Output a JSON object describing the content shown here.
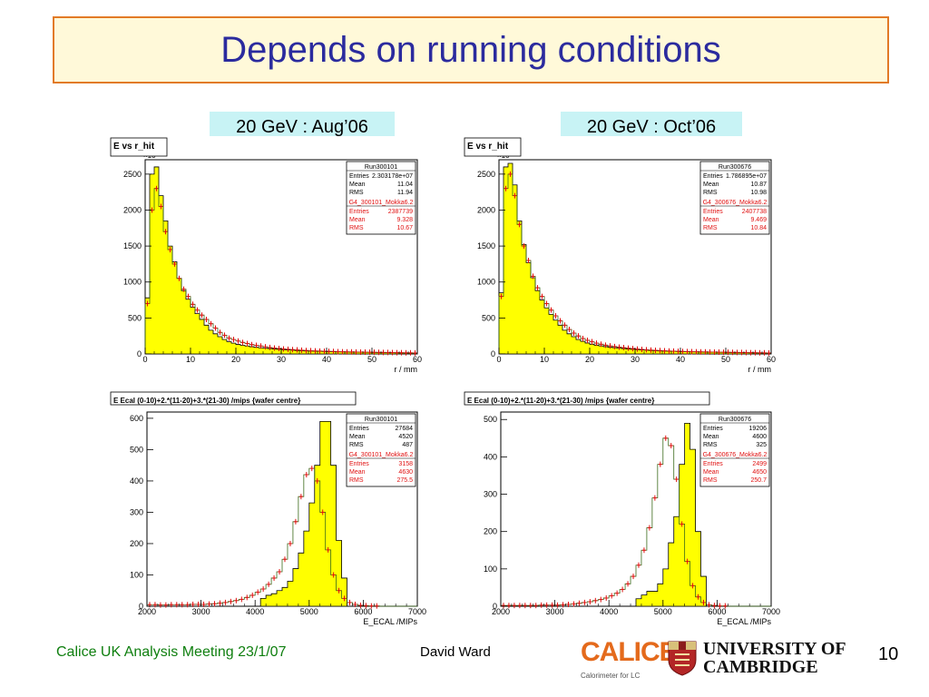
{
  "slide": {
    "title": "Depends on running conditions",
    "labels": [
      "20 GeV : Aug’06",
      "20 GeV : Oct’06"
    ],
    "footer_left": "Calice UK Analysis Meeting 23/1/07",
    "footer_center": "David Ward",
    "page_number": "10",
    "logo_calice": "CALICE",
    "logo_calice_sub": "Calorimeter for LC",
    "logo_cambridge": [
      "UNIVERSITY OF",
      "CAMBRIDGE"
    ]
  },
  "chart_data": [
    {
      "type": "bar",
      "title": "E vs r_hit",
      "xlabel": "r / mm",
      "ylabel_exp": "×10",
      "xlim": [
        0,
        60
      ],
      "ylim": [
        0,
        2700
      ],
      "xticks": [
        0,
        10,
        20,
        30,
        40,
        50,
        60
      ],
      "yticks": [
        0,
        500,
        1000,
        1500,
        2000,
        2500
      ],
      "bin_width": 1,
      "series": [
        {
          "role": "data",
          "values": [
            700,
            2000,
            2300,
            2050,
            1700,
            1450,
            1250,
            1050,
            900,
            800,
            690,
            610,
            540,
            480,
            420,
            360,
            300,
            260,
            220,
            200,
            180,
            160,
            145,
            130,
            120,
            110,
            100,
            90,
            82,
            75,
            70,
            65,
            60,
            56,
            52,
            48,
            45,
            42,
            40,
            38,
            36,
            34,
            32,
            30,
            29,
            28,
            27,
            26,
            25,
            24,
            23,
            22,
            21,
            20,
            19,
            18,
            17,
            16,
            15,
            14
          ]
        },
        {
          "role": "mc",
          "values": [
            780,
            2500,
            2600,
            2200,
            1850,
            1500,
            1280,
            1050,
            880,
            760,
            650,
            560,
            480,
            400,
            330,
            280,
            240,
            200,
            170,
            150,
            132,
            120,
            110,
            100,
            92,
            85,
            80,
            75,
            70,
            65,
            60,
            56,
            52,
            48,
            45,
            42,
            40,
            38,
            36,
            34,
            32,
            30,
            29,
            28,
            27,
            26,
            25,
            24,
            23,
            22,
            21,
            20,
            19,
            18,
            17,
            16,
            15,
            14,
            13,
            12
          ]
        }
      ],
      "stats": [
        {
          "header": "Run300101",
          "rows": [
            [
              "Entries",
              "2.303178e+07"
            ],
            [
              "Mean",
              "11.04"
            ],
            [
              "RMS",
              "11.94"
            ]
          ]
        },
        {
          "header": "G4_300101_Mokka6.2",
          "rows": [
            [
              "Entries",
              "2387739"
            ],
            [
              "Mean",
              "9.328"
            ],
            [
              "RMS",
              "10.67"
            ]
          ]
        }
      ]
    },
    {
      "type": "bar",
      "title": "E vs r_hit",
      "xlabel": "r / mm",
      "ylabel_exp": "×10",
      "xlim": [
        0,
        60
      ],
      "ylim": [
        0,
        2700
      ],
      "xticks": [
        0,
        10,
        20,
        30,
        40,
        50,
        60
      ],
      "yticks": [
        0,
        500,
        1000,
        1500,
        2000,
        2500
      ],
      "bin_width": 1,
      "series": [
        {
          "role": "data",
          "values": [
            800,
            2300,
            2500,
            2200,
            1800,
            1500,
            1300,
            1080,
            920,
            800,
            700,
            610,
            530,
            460,
            400,
            340,
            290,
            250,
            215,
            190,
            170,
            150,
            135,
            122,
            112,
            103,
            95,
            88,
            80,
            74,
            68,
            63,
            58,
            54,
            50,
            47,
            44,
            41,
            39,
            37,
            35,
            33,
            31,
            30,
            29,
            28,
            27,
            26,
            25,
            24,
            23,
            22,
            21,
            20,
            19,
            18,
            17,
            16,
            15,
            14
          ]
        },
        {
          "role": "mc",
          "values": [
            850,
            2600,
            2650,
            2350,
            1850,
            1520,
            1270,
            1060,
            880,
            750,
            640,
            550,
            470,
            400,
            330,
            280,
            240,
            200,
            175,
            152,
            135,
            122,
            112,
            102,
            94,
            87,
            80,
            75,
            70,
            65,
            60,
            56,
            52,
            48,
            45,
            42,
            40,
            38,
            36,
            34,
            32,
            30,
            29,
            28,
            27,
            26,
            25,
            24,
            23,
            22,
            21,
            20,
            19,
            18,
            17,
            16,
            15,
            14,
            13,
            12
          ]
        }
      ],
      "stats": [
        {
          "header": "Run300676",
          "rows": [
            [
              "Entries",
              "1.786895e+07"
            ],
            [
              "Mean",
              "10.87"
            ],
            [
              "RMS",
              "10.98"
            ]
          ]
        },
        {
          "header": "G4_300676_Mokka6.2",
          "rows": [
            [
              "Entries",
              "2407738"
            ],
            [
              "Mean",
              "9.469"
            ],
            [
              "RMS",
              "10.84"
            ]
          ]
        }
      ]
    },
    {
      "type": "bar",
      "title": "E Ecal (0-10)+2.*(11-20)+3.*(21-30) /mips {wafer centre}",
      "xlabel": "E_ECAL /MIPs",
      "xlim": [
        2000,
        7000
      ],
      "ylim": [
        0,
        620
      ],
      "xticks": [
        2000,
        3000,
        4000,
        5000,
        6000,
        7000
      ],
      "yticks": [
        0,
        100,
        200,
        300,
        400,
        500,
        600
      ],
      "bin_width": 100,
      "x_start": 2000,
      "series": [
        {
          "role": "data",
          "values": [
            5,
            5,
            4,
            4,
            5,
            5,
            5,
            5,
            6,
            6,
            6,
            7,
            8,
            10,
            12,
            15,
            18,
            22,
            28,
            35,
            45,
            55,
            70,
            90,
            110,
            150,
            200,
            270,
            350,
            420,
            440,
            400,
            300,
            180,
            100,
            50,
            25,
            12,
            6,
            3,
            2,
            1,
            1,
            0,
            0,
            0,
            0,
            0,
            0,
            0
          ]
        },
        {
          "role": "mc",
          "values": [
            0,
            0,
            0,
            0,
            0,
            0,
            0,
            0,
            0,
            0,
            0,
            0,
            0,
            0,
            0,
            0,
            0,
            0,
            0,
            0,
            0,
            25,
            35,
            40,
            50,
            60,
            80,
            120,
            170,
            240,
            330,
            450,
            590,
            590,
            450,
            210,
            90,
            0,
            0,
            0,
            0,
            0,
            0,
            0,
            0,
            0,
            0,
            0,
            0,
            0
          ]
        }
      ],
      "stats": [
        {
          "header": "Run300101",
          "rows": [
            [
              "Entries",
              "27684"
            ],
            [
              "Mean",
              "4520"
            ],
            [
              "RMS",
              "487"
            ]
          ]
        },
        {
          "header": "G4_300101_Mokka6.2",
          "rows": [
            [
              "Entries",
              "3158"
            ],
            [
              "Mean",
              "4630"
            ],
            [
              "RMS",
              "275.5"
            ]
          ]
        }
      ]
    },
    {
      "type": "bar",
      "title": "E Ecal (0-10)+2.*(11-20)+3.*(21-30) /mips {wafer centre}",
      "xlabel": "E_ECAL /MIPs",
      "xlim": [
        2000,
        7000
      ],
      "ylim": [
        0,
        520
      ],
      "xticks": [
        2000,
        3000,
        4000,
        5000,
        6000,
        7000
      ],
      "yticks": [
        0,
        100,
        200,
        300,
        400,
        500
      ],
      "bin_width": 100,
      "x_start": 2000,
      "series": [
        {
          "role": "data",
          "values": [
            2,
            2,
            2,
            2,
            2,
            2,
            2,
            3,
            3,
            3,
            3,
            4,
            5,
            6,
            8,
            10,
            12,
            15,
            18,
            22,
            28,
            35,
            45,
            60,
            80,
            110,
            150,
            210,
            290,
            380,
            450,
            430,
            340,
            220,
            120,
            55,
            25,
            10,
            4,
            2,
            1,
            1,
            0,
            0,
            0,
            0,
            0,
            0,
            0,
            0
          ]
        },
        {
          "role": "mc",
          "values": [
            0,
            0,
            0,
            0,
            0,
            0,
            0,
            0,
            0,
            0,
            0,
            0,
            0,
            0,
            0,
            0,
            0,
            0,
            0,
            0,
            0,
            0,
            0,
            0,
            0,
            20,
            30,
            40,
            40,
            60,
            100,
            170,
            240,
            380,
            490,
            420,
            200,
            80,
            0,
            0,
            0,
            0,
            0,
            0,
            0,
            0,
            0,
            0,
            0,
            0
          ]
        }
      ],
      "stats": [
        {
          "header": "Run300676",
          "rows": [
            [
              "Entries",
              "19206"
            ],
            [
              "Mean",
              "4600"
            ],
            [
              "RMS",
              "325"
            ]
          ]
        },
        {
          "header": "G4_300676_Mokka6.2",
          "rows": [
            [
              "Entries",
              "2499"
            ],
            [
              "Mean",
              "4650"
            ],
            [
              "RMS",
              "250.7"
            ]
          ]
        }
      ]
    }
  ]
}
